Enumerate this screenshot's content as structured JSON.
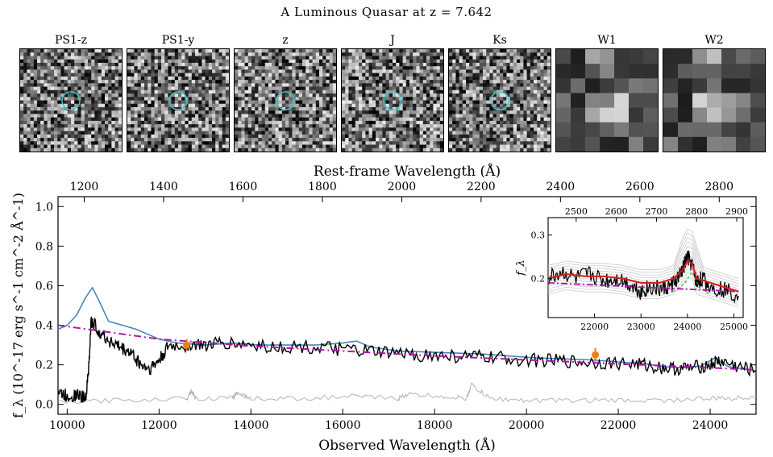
{
  "page_title": "A Luminous Quasar at z = 7.642",
  "cutouts": [
    {
      "label": "PS1-z",
      "circle": true,
      "coarse": false
    },
    {
      "label": "PS1-y",
      "circle": true,
      "coarse": false
    },
    {
      "label": "z",
      "circle": true,
      "coarse": false
    },
    {
      "label": "J",
      "circle": true,
      "coarse": false
    },
    {
      "label": "Ks",
      "circle": true,
      "coarse": false
    },
    {
      "label": "W1",
      "circle": false,
      "coarse": true
    },
    {
      "label": "W2",
      "circle": false,
      "coarse": true
    }
  ],
  "colors": {
    "data": "#000000",
    "template": "#4a86b8",
    "continuum": "#b312a8",
    "noise": "#b4b4b4",
    "photometry": "#e8821f",
    "fit": "#d62020",
    "circle": "#39c5c8",
    "mgii": "#38b038"
  },
  "chart_data": [
    {
      "type": "line",
      "title": "",
      "xlabel": "Observed Wavelength (Å)",
      "ylabel": "f_λ (10^-17 erg s^-1 cm^-2 Å^-1)",
      "top_xlabel": "Rest-frame Wavelength (Å)",
      "xlim": [
        9800,
        25000
      ],
      "ylim": [
        -0.05,
        1.05
      ],
      "x_ticks": [
        10000,
        12000,
        14000,
        16000,
        18000,
        20000,
        22000,
        24000
      ],
      "y_ticks": [
        0.0,
        0.2,
        0.4,
        0.6,
        0.8,
        1.0
      ],
      "y_tick_labels": [
        "0.0",
        "0.2",
        "0.4",
        "0.6",
        "0.8",
        "1.0"
      ],
      "top_ticks": [
        1200,
        1400,
        1600,
        1800,
        2000,
        2200,
        2400,
        2600,
        2800
      ],
      "redshift": 7.642,
      "series": [
        {
          "style": "spectrum",
          "x": [
            9800,
            10000,
            10200,
            10400,
            10480,
            10520,
            10600,
            10800,
            11000,
            11200,
            11400,
            11600,
            11800,
            12000,
            12200,
            12600,
            13000,
            13400,
            14000,
            14600,
            15200,
            15800,
            16400,
            17000,
            17600,
            18200,
            18800,
            19400,
            20000,
            20600,
            21200,
            21800,
            22400,
            22800,
            23200,
            23600,
            24000,
            24200,
            24600,
            25000
          ],
          "y": [
            0.06,
            0.04,
            0.05,
            0.03,
            0.22,
            0.42,
            0.4,
            0.34,
            0.31,
            0.28,
            0.26,
            0.2,
            0.18,
            0.22,
            0.29,
            0.3,
            0.3,
            0.31,
            0.3,
            0.29,
            0.29,
            0.28,
            0.27,
            0.26,
            0.25,
            0.245,
            0.24,
            0.235,
            0.225,
            0.22,
            0.215,
            0.21,
            0.205,
            0.19,
            0.18,
            0.185,
            0.2,
            0.22,
            0.19,
            0.17
          ]
        },
        {
          "style": "template",
          "x": [
            9800,
            10000,
            10200,
            10400,
            10550,
            10700,
            10900,
            11200,
            11500,
            11800,
            12000,
            12400,
            13000,
            13600,
            14200,
            14800,
            15400,
            16000,
            16300,
            16600,
            17200,
            17800,
            18400,
            19000,
            19600,
            20200,
            20800,
            21400,
            22000,
            22600,
            23000,
            23400,
            23800,
            24100,
            24400,
            24700,
            25000
          ],
          "y": [
            0.38,
            0.4,
            0.45,
            0.54,
            0.59,
            0.52,
            0.42,
            0.4,
            0.38,
            0.35,
            0.33,
            0.31,
            0.3,
            0.31,
            0.3,
            0.3,
            0.3,
            0.31,
            0.32,
            0.29,
            0.27,
            0.265,
            0.26,
            0.255,
            0.245,
            0.235,
            0.23,
            0.225,
            0.215,
            0.205,
            0.19,
            0.185,
            0.195,
            0.235,
            0.19,
            0.18,
            0.17
          ]
        },
        {
          "style": "continuum",
          "x": [
            9800,
            12000,
            14000,
            16000,
            18000,
            20000,
            22000,
            24000,
            25000
          ],
          "y": [
            0.4,
            0.33,
            0.295,
            0.27,
            0.245,
            0.225,
            0.205,
            0.185,
            0.175
          ]
        },
        {
          "style": "noise",
          "x": [
            9800,
            11000,
            12600,
            12700,
            12800,
            13600,
            13700,
            14000,
            15000,
            16200,
            17200,
            17400,
            18200,
            18700,
            18800,
            19200,
            20000,
            21000,
            22000,
            23000,
            24000,
            24500,
            25000
          ],
          "y": [
            0.01,
            0.02,
            0.03,
            0.07,
            0.03,
            0.03,
            0.06,
            0.03,
            0.03,
            0.04,
            0.03,
            0.05,
            0.04,
            0.03,
            0.1,
            0.03,
            0.02,
            0.02,
            0.02,
            0.02,
            0.03,
            0.03,
            0.04
          ]
        },
        {
          "style": "photometry",
          "x": [
            12600,
            21500
          ],
          "y": [
            0.3,
            0.25
          ],
          "err": [
            0.03,
            0.035
          ]
        }
      ]
    },
    {
      "type": "line",
      "title": "",
      "ylabel": "f_λ",
      "xlim": [
        21000,
        25200
      ],
      "ylim": [
        0.11,
        0.34
      ],
      "x_ticks": [
        22000,
        23000,
        24000,
        25000
      ],
      "y_ticks": [
        0.2,
        0.3
      ],
      "y_tick_labels": [
        "0.2",
        "0.3"
      ],
      "top_ticks": [
        2500,
        2600,
        2700,
        2800,
        2900
      ],
      "series": [
        {
          "style": "spectrum",
          "x": [
            21000,
            21300,
            21600,
            21900,
            22200,
            22500,
            22800,
            23000,
            23200,
            23400,
            23600,
            23800,
            23900,
            24000,
            24100,
            24200,
            24300,
            24500,
            24800,
            25100
          ],
          "y": [
            0.2,
            0.215,
            0.2,
            0.21,
            0.195,
            0.2,
            0.185,
            0.17,
            0.18,
            0.175,
            0.18,
            0.2,
            0.22,
            0.25,
            0.23,
            0.19,
            0.2,
            0.18,
            0.175,
            0.16
          ]
        },
        {
          "style": "fit",
          "x": [
            21000,
            21400,
            21800,
            22200,
            22600,
            23000,
            23400,
            23700,
            23900,
            24000,
            24100,
            24200,
            24350,
            24500,
            24800,
            25100
          ],
          "y": [
            0.2,
            0.21,
            0.205,
            0.205,
            0.2,
            0.19,
            0.19,
            0.2,
            0.22,
            0.24,
            0.235,
            0.2,
            0.195,
            0.19,
            0.18,
            0.17
          ]
        },
        {
          "style": "continuum",
          "x": [
            21000,
            25100
          ],
          "y": [
            0.19,
            0.17
          ]
        }
      ]
    }
  ]
}
